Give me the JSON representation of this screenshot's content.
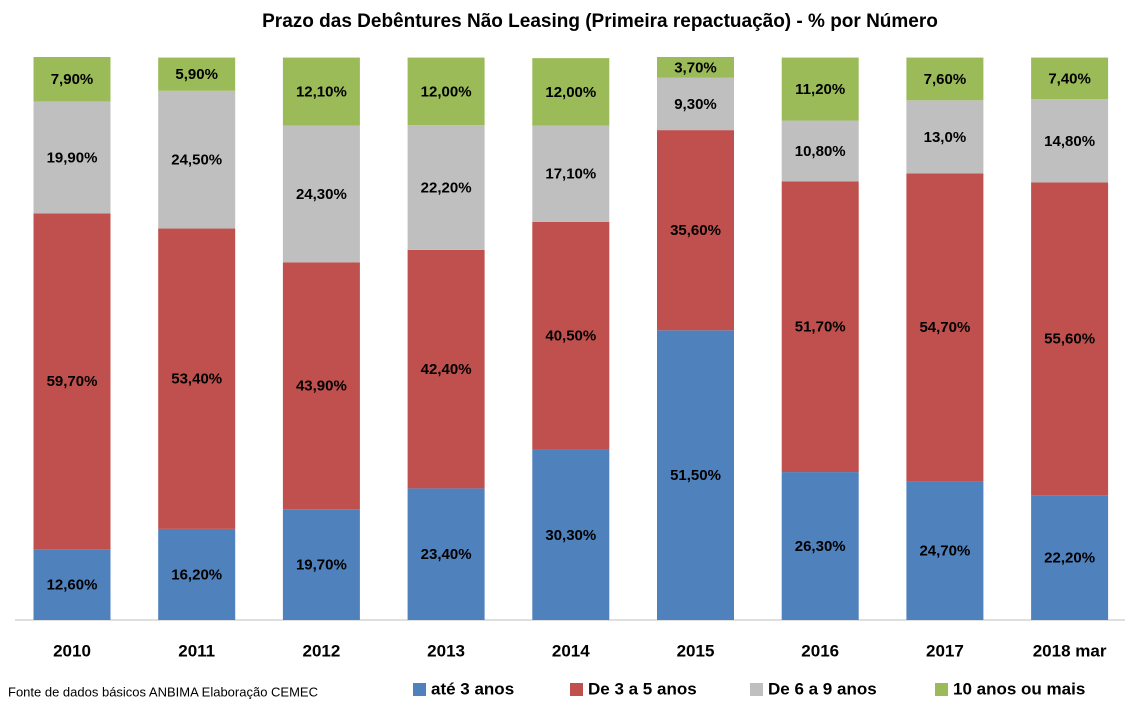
{
  "chart_data": {
    "type": "stacked_bar",
    "title": "Prazo das Debêntures Não Leasing (Primeira repactuação) - % por Número",
    "categories": [
      "2010",
      "2011",
      "2012",
      "2013",
      "2014",
      "2015",
      "2016",
      "2017",
      "2018 mar"
    ],
    "series": [
      {
        "name": "até 3 anos",
        "color": "#4f81bd",
        "values": [
          12.6,
          16.2,
          19.7,
          23.4,
          30.3,
          51.5,
          26.3,
          24.7,
          22.2
        ],
        "value_labels": [
          "12,60%",
          "16,20%",
          "19,70%",
          "23,40%",
          "30,30%",
          "51,50%",
          "26,30%",
          "24,70%",
          "22,20%"
        ]
      },
      {
        "name": "De 3 a 5 anos",
        "color": "#c0504d",
        "values": [
          59.7,
          53.4,
          43.9,
          42.4,
          40.5,
          35.6,
          51.7,
          54.7,
          55.6
        ],
        "value_labels": [
          "59,70%",
          "53,40%",
          "43,90%",
          "42,40%",
          "40,50%",
          "35,60%",
          "51,70%",
          "54,70%",
          "55,60%"
        ]
      },
      {
        "name": "De 6 a 9 anos",
        "color": "#bfbfbf",
        "values": [
          19.9,
          24.5,
          24.3,
          22.2,
          17.1,
          9.3,
          10.8,
          13.0,
          14.8
        ],
        "value_labels": [
          "19,90%",
          "24,50%",
          "24,30%",
          "22,20%",
          "17,10%",
          "9,30%",
          "10,80%",
          "13,0%",
          "14,80%"
        ]
      },
      {
        "name": "10 anos ou mais",
        "color": "#9bbb59",
        "values": [
          7.9,
          5.9,
          12.1,
          12.0,
          12.0,
          3.7,
          11.2,
          7.6,
          7.4
        ],
        "value_labels": [
          "7,90%",
          "5,90%",
          "12,10%",
          "12,00%",
          "12,00%",
          "3,70%",
          "11,20%",
          "7,60%",
          "7,40%"
        ]
      }
    ],
    "legend": "bottom",
    "source": "Fonte de dados básicos ANBIMA Elaboração CEMEC"
  }
}
